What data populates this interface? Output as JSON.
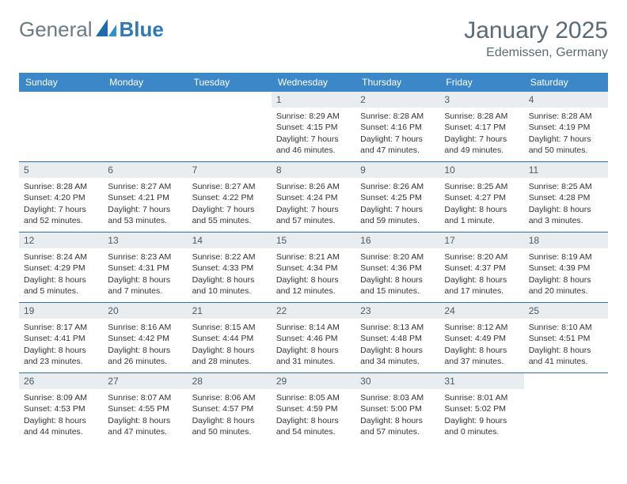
{
  "brand": {
    "part1": "General",
    "part2": "Blue"
  },
  "header": {
    "title": "January 2025",
    "location": "Edemissen, Germany"
  },
  "colors": {
    "header_bg": "#3b87c8",
    "header_text": "#ffffff",
    "numbar_bg": "#e9edf0",
    "numbar_text": "#4a5a66",
    "rule": "#2f6ea6",
    "title_text": "#5a6a76",
    "logo_gray": "#6a7a86",
    "logo_blue": "#2f79b7",
    "body_text": "#333333",
    "page_bg": "#ffffff"
  },
  "day_names": [
    "Sunday",
    "Monday",
    "Tuesday",
    "Wednesday",
    "Thursday",
    "Friday",
    "Saturday"
  ],
  "weeks": [
    [
      {
        "n": "",
        "sunrise": "",
        "sunset": "",
        "daylight": ""
      },
      {
        "n": "",
        "sunrise": "",
        "sunset": "",
        "daylight": ""
      },
      {
        "n": "",
        "sunrise": "",
        "sunset": "",
        "daylight": ""
      },
      {
        "n": "1",
        "sunrise": "Sunrise: 8:29 AM",
        "sunset": "Sunset: 4:15 PM",
        "daylight": "Daylight: 7 hours and 46 minutes."
      },
      {
        "n": "2",
        "sunrise": "Sunrise: 8:28 AM",
        "sunset": "Sunset: 4:16 PM",
        "daylight": "Daylight: 7 hours and 47 minutes."
      },
      {
        "n": "3",
        "sunrise": "Sunrise: 8:28 AM",
        "sunset": "Sunset: 4:17 PM",
        "daylight": "Daylight: 7 hours and 49 minutes."
      },
      {
        "n": "4",
        "sunrise": "Sunrise: 8:28 AM",
        "sunset": "Sunset: 4:19 PM",
        "daylight": "Daylight: 7 hours and 50 minutes."
      }
    ],
    [
      {
        "n": "5",
        "sunrise": "Sunrise: 8:28 AM",
        "sunset": "Sunset: 4:20 PM",
        "daylight": "Daylight: 7 hours and 52 minutes."
      },
      {
        "n": "6",
        "sunrise": "Sunrise: 8:27 AM",
        "sunset": "Sunset: 4:21 PM",
        "daylight": "Daylight: 7 hours and 53 minutes."
      },
      {
        "n": "7",
        "sunrise": "Sunrise: 8:27 AM",
        "sunset": "Sunset: 4:22 PM",
        "daylight": "Daylight: 7 hours and 55 minutes."
      },
      {
        "n": "8",
        "sunrise": "Sunrise: 8:26 AM",
        "sunset": "Sunset: 4:24 PM",
        "daylight": "Daylight: 7 hours and 57 minutes."
      },
      {
        "n": "9",
        "sunrise": "Sunrise: 8:26 AM",
        "sunset": "Sunset: 4:25 PM",
        "daylight": "Daylight: 7 hours and 59 minutes."
      },
      {
        "n": "10",
        "sunrise": "Sunrise: 8:25 AM",
        "sunset": "Sunset: 4:27 PM",
        "daylight": "Daylight: 8 hours and 1 minute."
      },
      {
        "n": "11",
        "sunrise": "Sunrise: 8:25 AM",
        "sunset": "Sunset: 4:28 PM",
        "daylight": "Daylight: 8 hours and 3 minutes."
      }
    ],
    [
      {
        "n": "12",
        "sunrise": "Sunrise: 8:24 AM",
        "sunset": "Sunset: 4:29 PM",
        "daylight": "Daylight: 8 hours and 5 minutes."
      },
      {
        "n": "13",
        "sunrise": "Sunrise: 8:23 AM",
        "sunset": "Sunset: 4:31 PM",
        "daylight": "Daylight: 8 hours and 7 minutes."
      },
      {
        "n": "14",
        "sunrise": "Sunrise: 8:22 AM",
        "sunset": "Sunset: 4:33 PM",
        "daylight": "Daylight: 8 hours and 10 minutes."
      },
      {
        "n": "15",
        "sunrise": "Sunrise: 8:21 AM",
        "sunset": "Sunset: 4:34 PM",
        "daylight": "Daylight: 8 hours and 12 minutes."
      },
      {
        "n": "16",
        "sunrise": "Sunrise: 8:20 AM",
        "sunset": "Sunset: 4:36 PM",
        "daylight": "Daylight: 8 hours and 15 minutes."
      },
      {
        "n": "17",
        "sunrise": "Sunrise: 8:20 AM",
        "sunset": "Sunset: 4:37 PM",
        "daylight": "Daylight: 8 hours and 17 minutes."
      },
      {
        "n": "18",
        "sunrise": "Sunrise: 8:19 AM",
        "sunset": "Sunset: 4:39 PM",
        "daylight": "Daylight: 8 hours and 20 minutes."
      }
    ],
    [
      {
        "n": "19",
        "sunrise": "Sunrise: 8:17 AM",
        "sunset": "Sunset: 4:41 PM",
        "daylight": "Daylight: 8 hours and 23 minutes."
      },
      {
        "n": "20",
        "sunrise": "Sunrise: 8:16 AM",
        "sunset": "Sunset: 4:42 PM",
        "daylight": "Daylight: 8 hours and 26 minutes."
      },
      {
        "n": "21",
        "sunrise": "Sunrise: 8:15 AM",
        "sunset": "Sunset: 4:44 PM",
        "daylight": "Daylight: 8 hours and 28 minutes."
      },
      {
        "n": "22",
        "sunrise": "Sunrise: 8:14 AM",
        "sunset": "Sunset: 4:46 PM",
        "daylight": "Daylight: 8 hours and 31 minutes."
      },
      {
        "n": "23",
        "sunrise": "Sunrise: 8:13 AM",
        "sunset": "Sunset: 4:48 PM",
        "daylight": "Daylight: 8 hours and 34 minutes."
      },
      {
        "n": "24",
        "sunrise": "Sunrise: 8:12 AM",
        "sunset": "Sunset: 4:49 PM",
        "daylight": "Daylight: 8 hours and 37 minutes."
      },
      {
        "n": "25",
        "sunrise": "Sunrise: 8:10 AM",
        "sunset": "Sunset: 4:51 PM",
        "daylight": "Daylight: 8 hours and 41 minutes."
      }
    ],
    [
      {
        "n": "26",
        "sunrise": "Sunrise: 8:09 AM",
        "sunset": "Sunset: 4:53 PM",
        "daylight": "Daylight: 8 hours and 44 minutes."
      },
      {
        "n": "27",
        "sunrise": "Sunrise: 8:07 AM",
        "sunset": "Sunset: 4:55 PM",
        "daylight": "Daylight: 8 hours and 47 minutes."
      },
      {
        "n": "28",
        "sunrise": "Sunrise: 8:06 AM",
        "sunset": "Sunset: 4:57 PM",
        "daylight": "Daylight: 8 hours and 50 minutes."
      },
      {
        "n": "29",
        "sunrise": "Sunrise: 8:05 AM",
        "sunset": "Sunset: 4:59 PM",
        "daylight": "Daylight: 8 hours and 54 minutes."
      },
      {
        "n": "30",
        "sunrise": "Sunrise: 8:03 AM",
        "sunset": "Sunset: 5:00 PM",
        "daylight": "Daylight: 8 hours and 57 minutes."
      },
      {
        "n": "31",
        "sunrise": "Sunrise: 8:01 AM",
        "sunset": "Sunset: 5:02 PM",
        "daylight": "Daylight: 9 hours and 0 minutes."
      },
      {
        "n": "",
        "sunrise": "",
        "sunset": "",
        "daylight": ""
      }
    ]
  ]
}
